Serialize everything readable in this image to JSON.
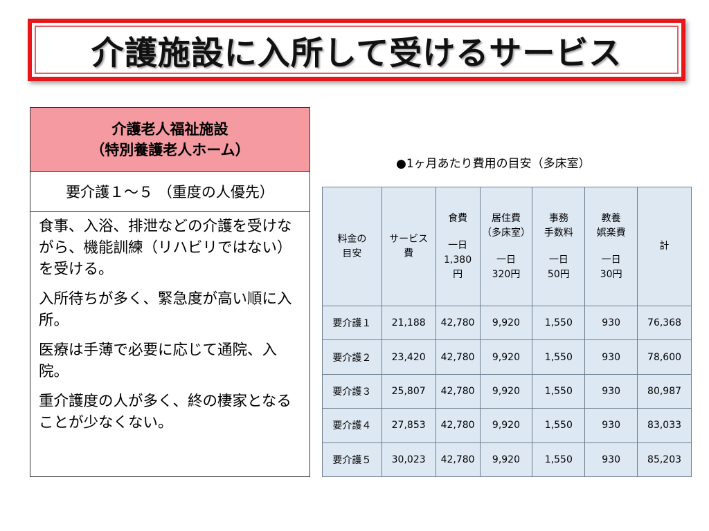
{
  "title": "介護施設に入所して受けるサービス",
  "facility": {
    "name_line1": "介護老人福祉施設",
    "name_line2": "（特別養護老人ホーム）",
    "eligibility": "要介護１～５ （重度の人優先）",
    "descriptions": [
      "食事、入浴、排泄などの介護を受けながら、機能訓練（リハビリではない）を受ける。",
      "入所待ちが多く、緊急度が高い順に入所。",
      "医療は手薄で必要に応じて通院、入院。",
      "重介護度の人が多く、終の棲家となることが少なくない。"
    ]
  },
  "table": {
    "caption": "●1ヶ月あたり費用の目安（多床室）",
    "headers": {
      "label_line1": "料金の",
      "label_line2": "目安",
      "service_line1": "サービス",
      "service_line2": "費",
      "food_name": "食費",
      "food_unit_line1": "一日",
      "food_unit_line2": "1,380",
      "food_unit_line3": "円",
      "housing_name_line1": "居住費",
      "housing_name_line2": "（多床室）",
      "housing_unit_line1": "一日",
      "housing_unit_line2": "320円",
      "admin_name_line1": "事務",
      "admin_name_line2": "手数料",
      "admin_unit_line1": "一日",
      "admin_unit_line2": "50円",
      "leisure_name_line1": "教養",
      "leisure_name_line2": "娯楽費",
      "leisure_unit_line1": "一日",
      "leisure_unit_line2": "30円",
      "total": "計"
    },
    "rows": [
      {
        "level": "要介護１",
        "service": "21,188",
        "food": "42,780",
        "housing": "9,920",
        "admin": "1,550",
        "leisure": "930",
        "total": "76,368"
      },
      {
        "level": "要介護２",
        "service": "23,420",
        "food": "42,780",
        "housing": "9,920",
        "admin": "1,550",
        "leisure": "930",
        "total": "78,600"
      },
      {
        "level": "要介護３",
        "service": "25,807",
        "food": "42,780",
        "housing": "9,920",
        "admin": "1,550",
        "leisure": "930",
        "total": "80,987"
      },
      {
        "level": "要介護４",
        "service": "27,853",
        "food": "42,780",
        "housing": "9,920",
        "admin": "1,550",
        "leisure": "930",
        "total": "83,033"
      },
      {
        "level": "要介護５",
        "service": "30,023",
        "food": "42,780",
        "housing": "9,920",
        "admin": "1,550",
        "leisure": "930",
        "total": "85,203"
      }
    ]
  }
}
